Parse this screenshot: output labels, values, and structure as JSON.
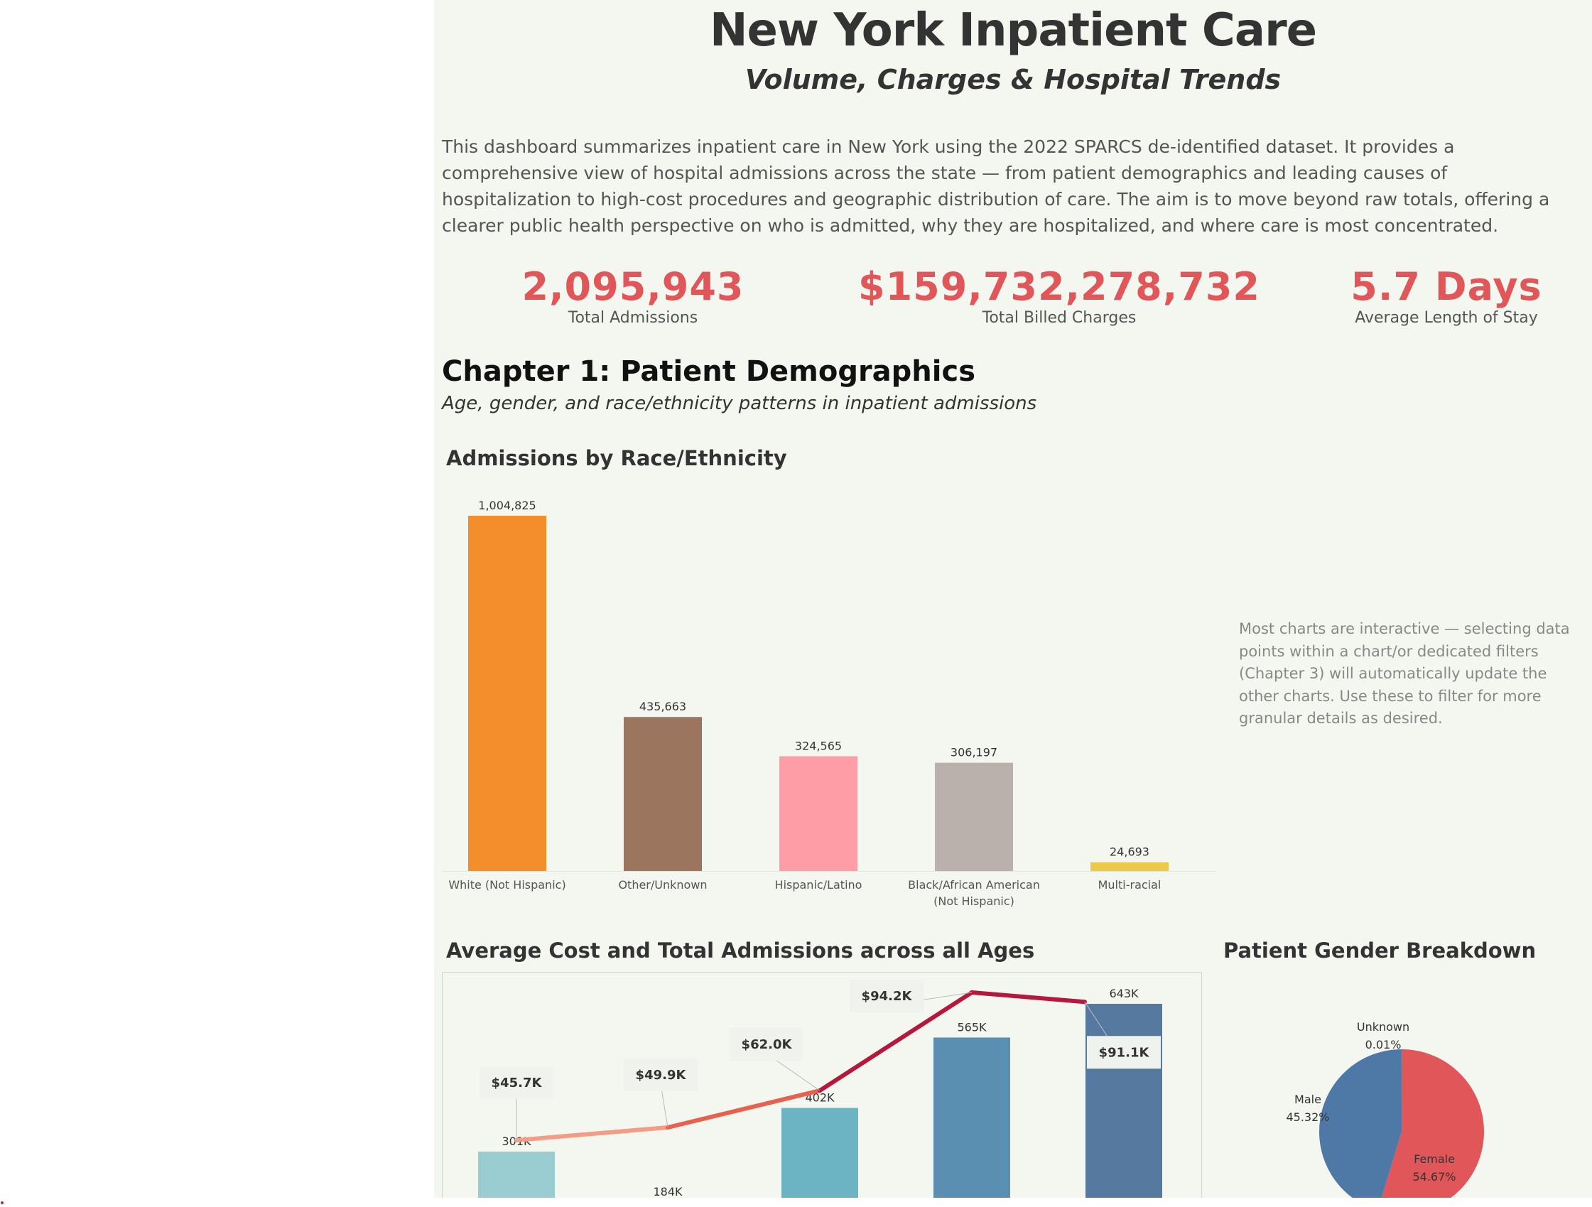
{
  "header": {
    "title": "New York Inpatient Care",
    "subtitle": "Volume, Charges & Hospital Trends"
  },
  "intro": "This dashboard summarizes inpatient care in New York using the 2022 SPARCS de-identified dataset. It provides a comprehensive view of hospital admissions across the state — from patient demographics and leading causes of hospitalization to high-cost procedures and geographic distribution of care. The aim is to move beyond raw totals, offering a clearer public health perspective on who is admitted, why they are hospitalized, and where care is most concentrated.",
  "kpis": [
    {
      "value": "2,095,943",
      "label": "Total Admissions"
    },
    {
      "value": "$159,732,278,732",
      "label": "Total Billed Charges"
    },
    {
      "value": "5.7 Days",
      "label": "Average Length of Stay"
    }
  ],
  "chapter": {
    "title": "Chapter 1: Patient Demographics",
    "subtitle": "Age, gender, and race/ethnicity patterns in inpatient admissions"
  },
  "note": "Most charts are interactive — selecting data points within a chart/or dedicated filters (Chapter 3) will automatically update the other charts. Use these to filter for more granular details as desired.",
  "chart_data": [
    {
      "type": "bar",
      "title": "Admissions by Race/Ethnicity",
      "categories": [
        "White (Not Hispanic)",
        "Other/Unknown",
        "Hispanic/Latino",
        "Black/African American (Not Hispanic)",
        "Multi-racial"
      ],
      "category_lines": [
        [
          "White (Not Hispanic)"
        ],
        [
          "Other/Unknown"
        ],
        [
          "Hispanic/Latino"
        ],
        [
          "Black/African American",
          "(Not Hispanic)"
        ],
        [
          "Multi-racial"
        ]
      ],
      "values": [
        1004825,
        435663,
        324565,
        306197,
        24693
      ],
      "data_labels": [
        "1,004,825",
        "435,663",
        "324,565",
        "306,197",
        "24,693"
      ],
      "colors": [
        "#f28e2b",
        "#9c755f",
        "#ff9da7",
        "#bab0ac",
        "#edc948"
      ],
      "ylim": [
        0,
        1004825
      ],
      "grid": false
    },
    {
      "type": "bar",
      "title": "Average Cost and Total Admissions across all Ages",
      "categories": [
        "",
        "",
        "",
        "",
        ""
      ],
      "series": [
        {
          "values": [
            301000,
            184000,
            402000,
            565000,
            643000
          ],
          "data_labels": [
            "301K",
            "184K",
            "402K",
            "565K",
            "643K"
          ]
        },
        {
          "type": "line",
          "values": [
            45.7,
            49.9,
            62.0,
            94.2,
            91.1
          ],
          "data_labels": [
            "$45.7K",
            "$49.9K",
            "$62.0K",
            "$94.2K",
            "$91.1K"
          ]
        }
      ],
      "bar_colors": [
        "#9acdd2",
        "#86c3cc",
        "#6cb3c4",
        "#5a8fb2",
        "#55789e"
      ],
      "line_colors": [
        "#fbb4a2",
        "#f59c84",
        "#e8614f",
        "#b8173c",
        "#b8173c"
      ],
      "ylim": [
        0,
        700000
      ],
      "y2lim": [
        0,
        100
      ]
    },
    {
      "type": "pie",
      "title": "Patient Gender Breakdown",
      "labels": [
        "Female",
        "Male",
        "Unknown"
      ],
      "values": [
        54.67,
        45.32,
        0.01
      ],
      "value_labels": [
        "54.67%",
        "45.32%",
        "0.01%"
      ],
      "colors": [
        "#e15759",
        "#4e79a7",
        "#59a14f"
      ]
    }
  ]
}
